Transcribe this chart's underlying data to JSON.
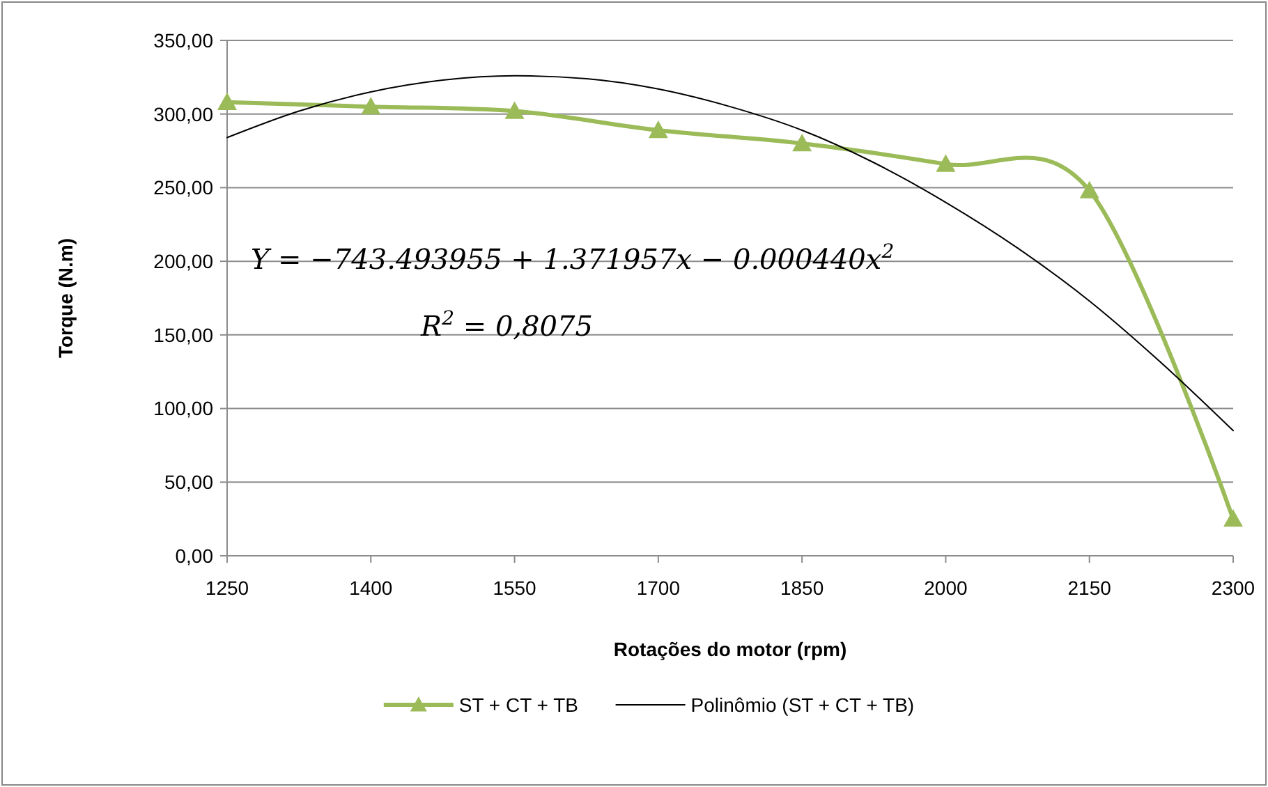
{
  "chart_data": {
    "type": "line",
    "xlabel": "Rotações do motor (rpm)",
    "ylabel": "Torque (N.m)",
    "x": [
      1250,
      1400,
      1550,
      1700,
      1850,
      2000,
      2150,
      2300
    ],
    "xlim": [
      1250,
      2300
    ],
    "xticks": [
      1250,
      1400,
      1550,
      1700,
      1850,
      2000,
      2150,
      2300
    ],
    "ylim": [
      0,
      350
    ],
    "yticks": [
      {
        "value": 0,
        "label": "0,00"
      },
      {
        "value": 50,
        "label": "50,00"
      },
      {
        "value": 100,
        "label": "100,00"
      },
      {
        "value": 150,
        "label": "150,00"
      },
      {
        "value": 200,
        "label": "200,00"
      },
      {
        "value": 250,
        "label": "250,00"
      },
      {
        "value": 300,
        "label": "300,00"
      },
      {
        "value": 350,
        "label": "350,00"
      }
    ],
    "grid": "y",
    "legend": "bottom",
    "series": [
      {
        "name": "ST + CT + TB",
        "color": "#9bbb59",
        "marker": "triangle",
        "values": [
          308,
          305,
          302,
          289,
          280,
          266,
          248,
          25
        ]
      },
      {
        "name": "Polinômio (ST + CT + TB)",
        "color": "#000000",
        "marker": "none",
        "x": [
          1250,
          1325,
          1400,
          1475,
          1550,
          1625,
          1700,
          1775,
          1850,
          1925,
          2000,
          2075,
          2150,
          2225,
          2300
        ],
        "values": [
          284,
          302,
          315,
          323,
          326,
          324,
          317,
          305,
          289,
          267,
          240,
          209,
          173,
          131,
          85
        ]
      }
    ],
    "annotations": [
      "Y = −743.493955 + 1.371957x − 0.000440x$^{2}$",
      "R$^{2}$ = 0,8075"
    ]
  }
}
